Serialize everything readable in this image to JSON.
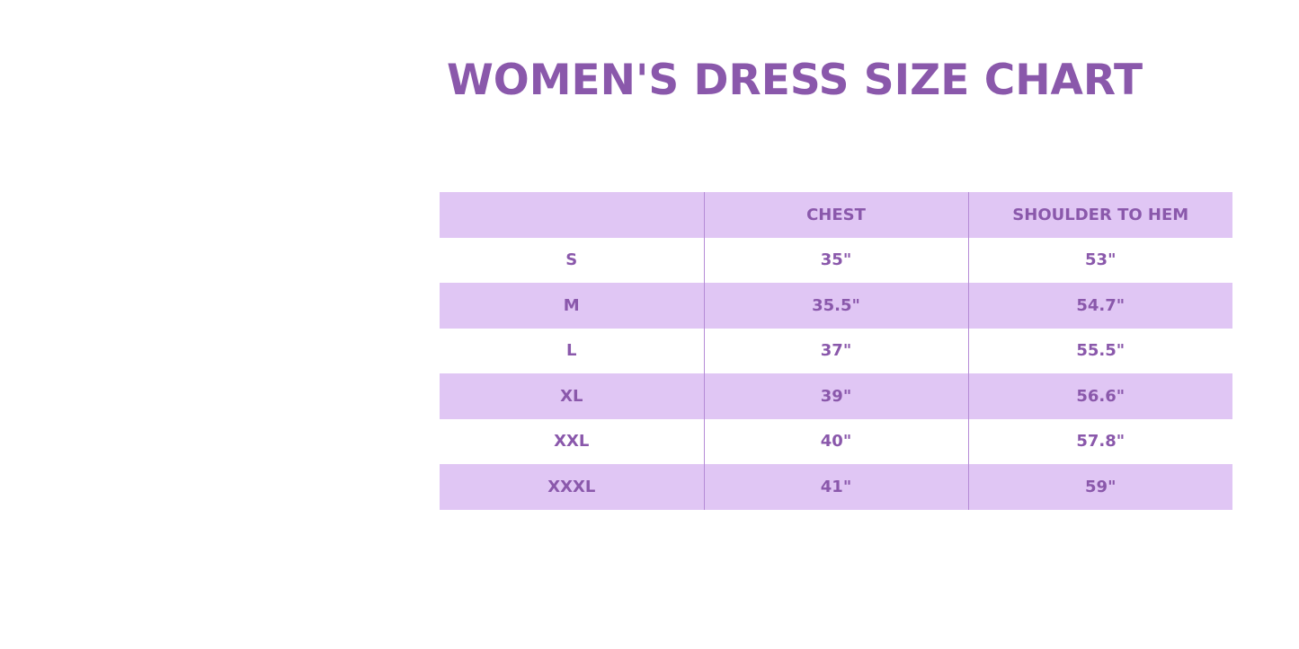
{
  "title": "WOMEN'S DRESS SIZE CHART",
  "colors": {
    "accent_text": "#8a58ab",
    "row_fill": "#e0c6f4",
    "divider": "#b58bd6"
  },
  "table": {
    "headers": [
      "",
      "CHEST",
      "SHOULDER TO HEM"
    ],
    "rows": [
      [
        "S",
        "35\"",
        "53\""
      ],
      [
        "M",
        "35.5\"",
        "54.7\""
      ],
      [
        "L",
        "37\"",
        "55.5\""
      ],
      [
        "XL",
        "39\"",
        "56.6\""
      ],
      [
        "XXL",
        "40\"",
        "57.8\""
      ],
      [
        "XXXL",
        "41\"",
        "59\""
      ]
    ]
  }
}
